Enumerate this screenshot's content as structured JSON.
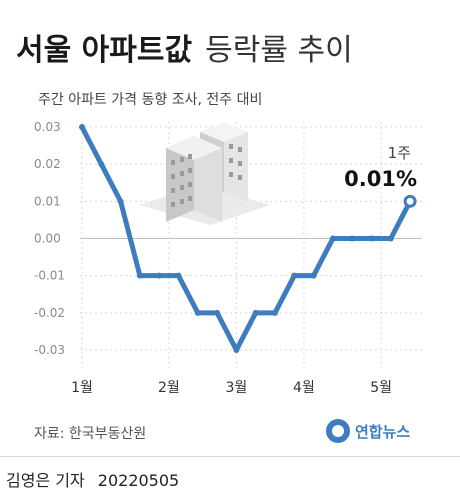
{
  "title": {
    "strong": "서울 아파트값",
    "light": "등락률 추이"
  },
  "subtitle": "주간 아파트 가격 동향 조사, 전주 대비",
  "source": "자료: 한국부동산원",
  "agency": "연합뉴스",
  "byline": {
    "name": "김영은 기자",
    "date": "20220505"
  },
  "colors": {
    "line": "#3d7dbf",
    "grid": "#d9d9d9",
    "zero": "#bdbdbd",
    "icon": "#3d7dbf"
  },
  "chart_data": {
    "type": "line",
    "ylim": [
      -0.03,
      0.03
    ],
    "yticks": [
      "0.03",
      "0.02",
      "0.01",
      "0.00",
      "-0.01",
      "-0.02",
      "-0.03"
    ],
    "x_labels": [
      "1월",
      "2월",
      "3월",
      "4월",
      "5월"
    ],
    "x_label_index": [
      0,
      4.5,
      8,
      11.5,
      15.5
    ],
    "values": [
      0.03,
      0.02,
      0.01,
      -0.01,
      -0.01,
      -0.01,
      -0.02,
      -0.02,
      -0.03,
      -0.02,
      -0.02,
      -0.01,
      -0.01,
      0,
      0,
      0,
      0,
      0.01
    ],
    "annotation": {
      "label": "1주",
      "value": "0.01%"
    }
  }
}
